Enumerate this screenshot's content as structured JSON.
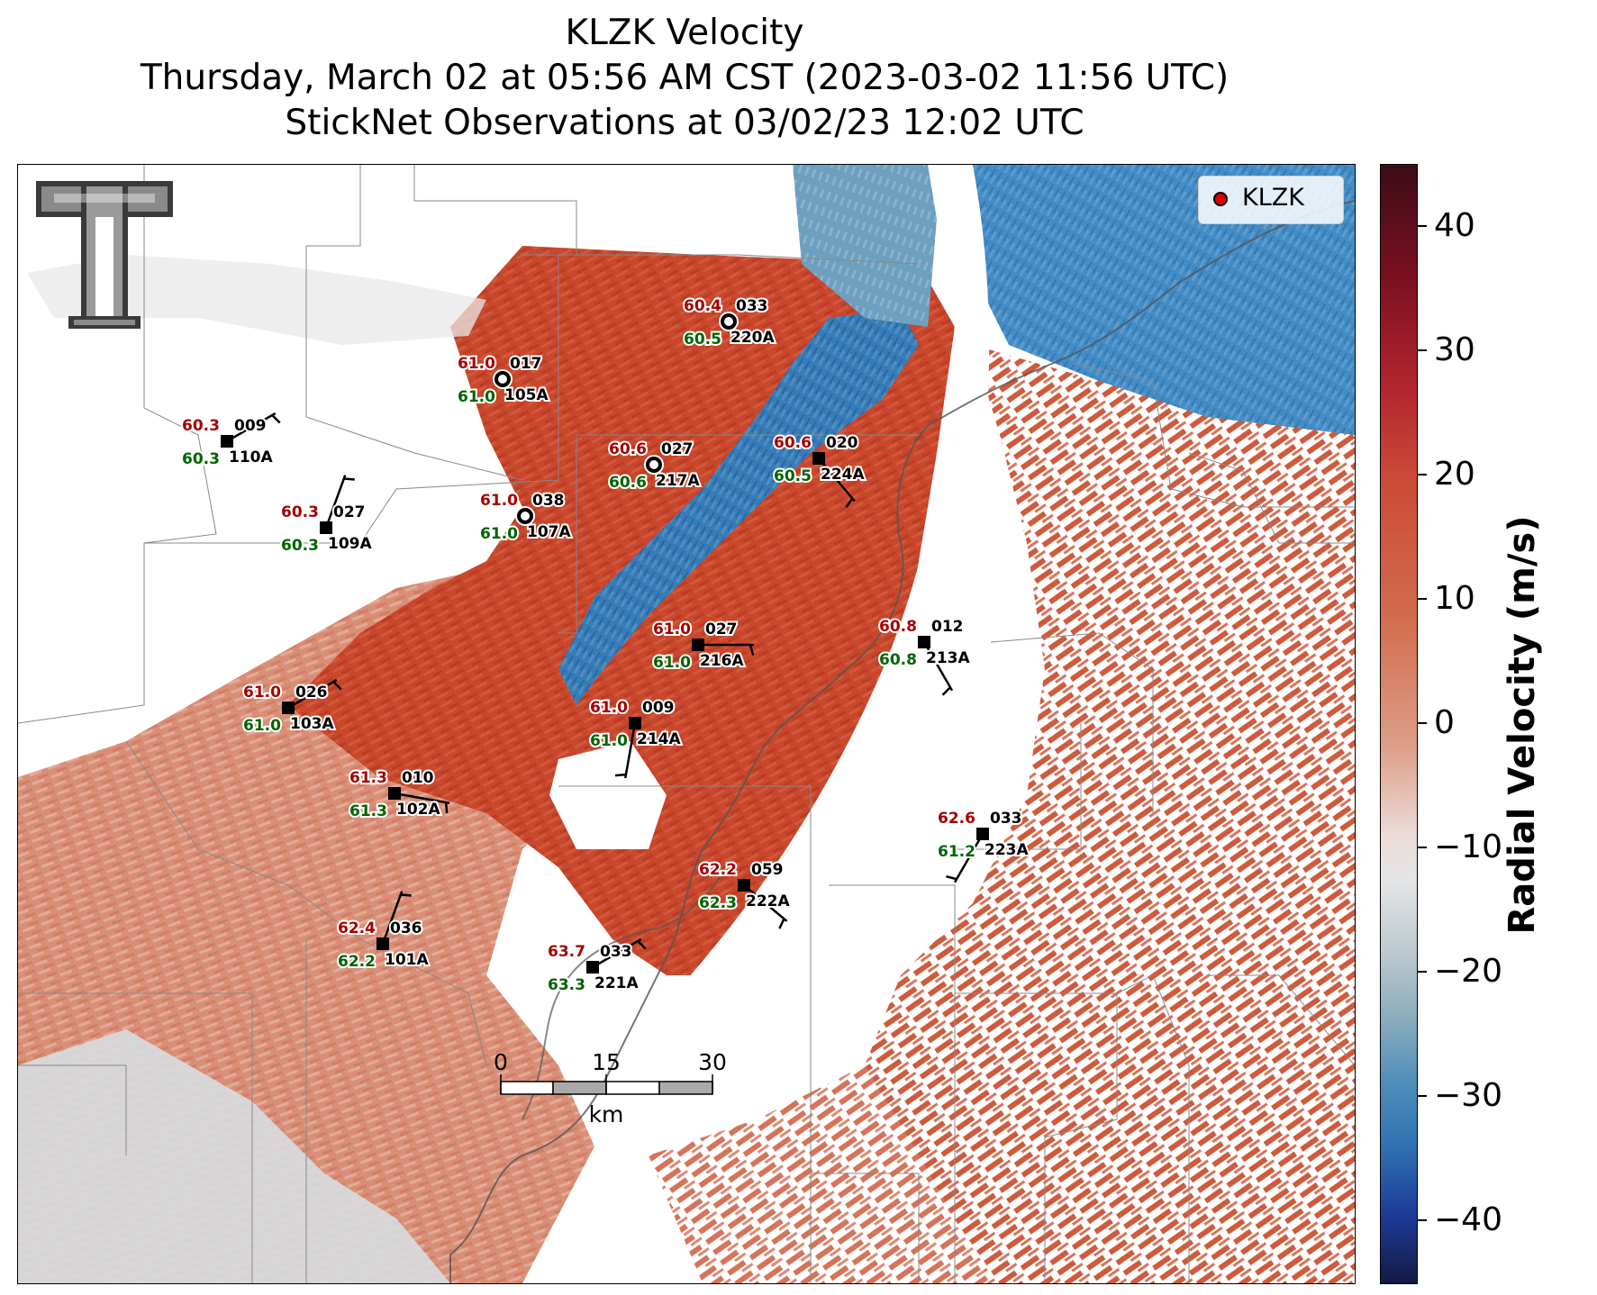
{
  "title": {
    "line1": "KLZK Velocity",
    "line2": "Thursday, March 02 at 05:56 AM CST (2023-03-02 11:56 UTC)",
    "line3": "StickNet Observations at 03/02/23 12:02 UTC"
  },
  "legend": {
    "label": "KLZK",
    "marker_color": "#e00000"
  },
  "colorbar": {
    "label": "Radial Velocity (m/s)",
    "ticks": [
      "40",
      "30",
      "20",
      "10",
      "0",
      "−10",
      "−20",
      "−30",
      "−40"
    ],
    "range": [
      -45,
      45
    ]
  },
  "scale_bar": {
    "labels": [
      "0",
      "15",
      "30"
    ],
    "unit": "km"
  },
  "logo": {
    "name": "texas-tech-double-t-logo"
  },
  "stations": [
    {
      "id": "101A",
      "temp": "62.4",
      "dew": "62.2",
      "dir": "036"
    },
    {
      "id": "102A",
      "temp": "61.3",
      "dew": "61.3",
      "dir": "010"
    },
    {
      "id": "103A",
      "temp": "61.0",
      "dew": "61.0",
      "dir": "026"
    },
    {
      "id": "105A",
      "temp": "61.0",
      "dew": "61.0",
      "dir": "017"
    },
    {
      "id": "107A",
      "temp": "61.0",
      "dew": "61.0",
      "dir": "038"
    },
    {
      "id": "109A",
      "temp": "60.3",
      "dew": "60.3",
      "dir": "027"
    },
    {
      "id": "110A",
      "temp": "60.3",
      "dew": "60.3",
      "dir": "009"
    },
    {
      "id": "213A",
      "temp": "60.8",
      "dew": "60.8",
      "dir": "012"
    },
    {
      "id": "214A",
      "temp": "61.0",
      "dew": "61.0",
      "dir": "009"
    },
    {
      "id": "216A",
      "temp": "61.0",
      "dew": "61.0",
      "dir": "027"
    },
    {
      "id": "217A",
      "temp": "60.6",
      "dew": "60.6",
      "dir": "027"
    },
    {
      "id": "220A",
      "temp": "60.4",
      "dew": "60.5",
      "dir": "033"
    },
    {
      "id": "221A",
      "temp": "63.7",
      "dew": "63.3",
      "dir": "033"
    },
    {
      "id": "222A",
      "temp": "62.2",
      "dew": "62.3",
      "dir": "059"
    },
    {
      "id": "223A",
      "temp": "62.6",
      "dew": "61.2",
      "dir": "033"
    },
    {
      "id": "224A",
      "temp": "60.6",
      "dew": "60.5",
      "dir": "020"
    }
  ],
  "colors": {
    "temp": "#a50000",
    "dew": "#006400",
    "inbound": "#2f7fc0",
    "outbound": "#c9472c",
    "light_outbound": "#dda08c",
    "near_zero": "#d8dde0"
  }
}
